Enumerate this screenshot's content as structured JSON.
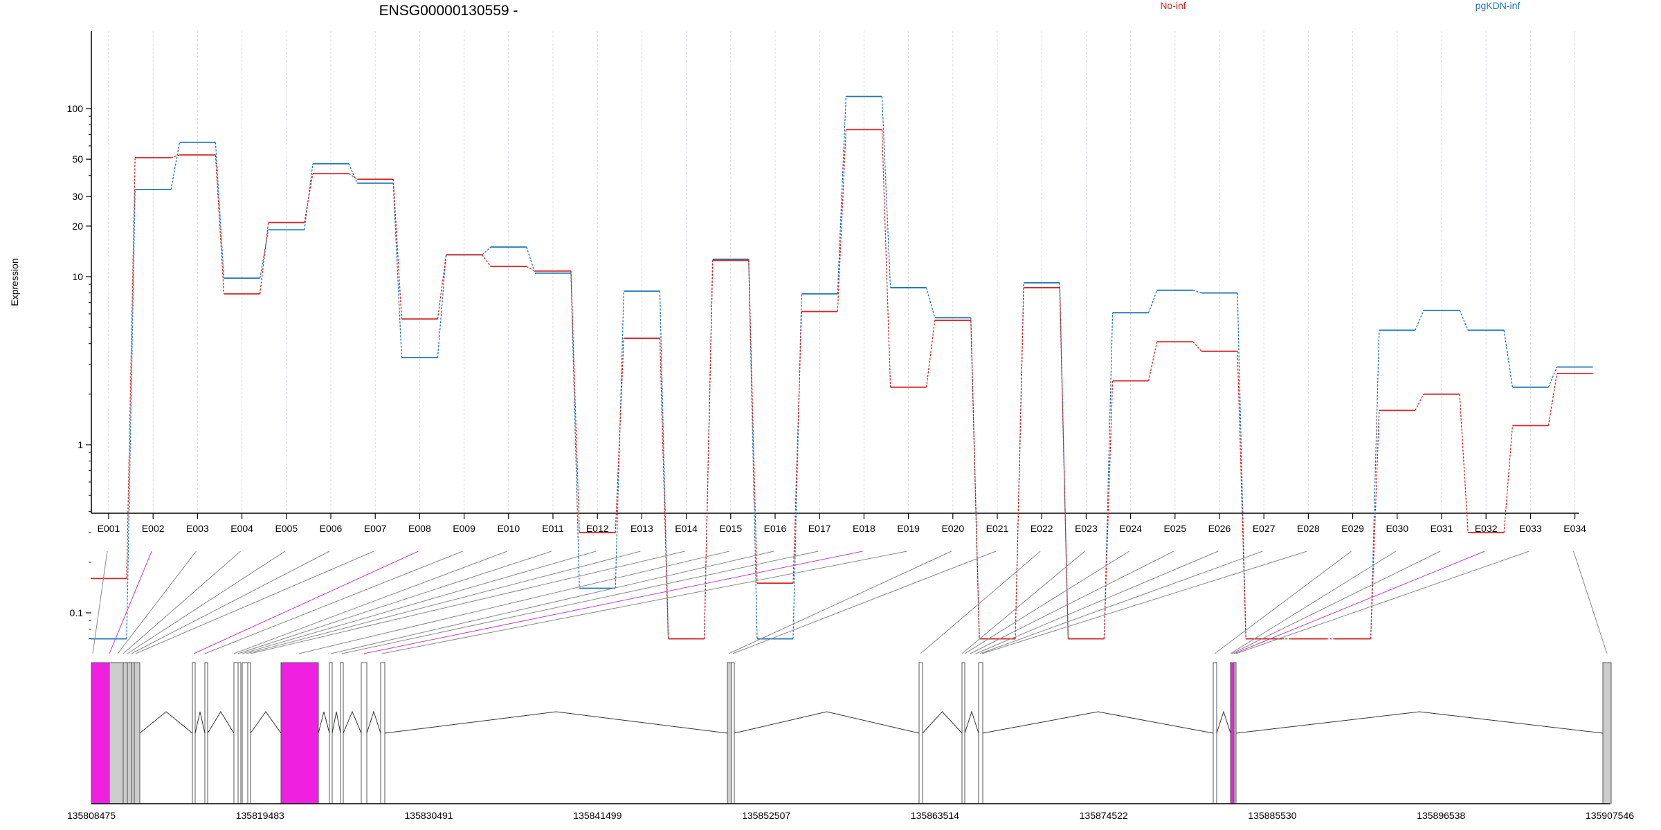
{
  "title": "ENSG00000130559 -",
  "ylabel": "Expression",
  "legend": [
    {
      "name": "No-inf",
      "color": "#d62728"
    },
    {
      "name": "pgKDN-inf",
      "color": "#1f77b4"
    }
  ],
  "colors": {
    "highlight": "#f020e0",
    "exon_fill": "#cccccc",
    "link_gray": "#888888",
    "link_magenta": "#c040c0",
    "grid": "#d9dbe6"
  },
  "chart_data": {
    "type": "line",
    "title": "ENSG00000130559 -",
    "xlabel": "",
    "ylabel": "Expression",
    "y_scale": "log",
    "ylim": [
      0.07,
      130
    ],
    "y_ticks": [
      0.1,
      1,
      10,
      20,
      30,
      50,
      100
    ],
    "y_tick_labels": [
      "0.1",
      "1",
      "10",
      "20",
      "30",
      "50",
      "100"
    ],
    "grid": "vertical lines at exon centers",
    "legend_position": "top",
    "categories": [
      "E001",
      "E002",
      "E003",
      "E004",
      "E005",
      "E006",
      "E007",
      "E008",
      "E009",
      "E010",
      "E011",
      "E012",
      "E013",
      "E014",
      "E015",
      "E016",
      "E017",
      "E018",
      "E019",
      "E020",
      "E021",
      "E022",
      "E023",
      "E024",
      "E025",
      "E026",
      "E027",
      "E028",
      "E029",
      "E030",
      "E031",
      "E032",
      "E033",
      "E034"
    ],
    "series": [
      {
        "name": "No-inf",
        "color": "#d62728",
        "values": [
          0.16,
          51,
          53,
          7.9,
          21,
          41,
          38,
          5.6,
          13.5,
          11.5,
          10.8,
          0.3,
          4.3,
          0.07,
          12.5,
          0.15,
          6.2,
          75,
          2.2,
          5.5,
          0.07,
          8.6,
          0.07,
          2.4,
          4.1,
          3.6,
          0.07,
          0.07,
          0.07,
          1.6,
          2.0,
          0.3,
          1.3,
          2.65
        ]
      },
      {
        "name": "pgKDN-inf",
        "color": "#1f77b4",
        "values": [
          0.07,
          33,
          63,
          9.8,
          19,
          47,
          36,
          3.3,
          13.5,
          15,
          10.5,
          0.14,
          8.2,
          0.07,
          12.7,
          0.07,
          7.9,
          118,
          8.6,
          5.7,
          0.07,
          9.2,
          0.07,
          6.1,
          8.3,
          8.0,
          0.07,
          0.07,
          0.07,
          4.8,
          6.3,
          4.8,
          2.2,
          2.9
        ]
      }
    ],
    "gene_model": {
      "coord_ticks": [
        "135808475",
        "135819483",
        "135830491",
        "135841499",
        "135852507",
        "135863514",
        "135874522",
        "135885530",
        "135896538",
        "135907546"
      ],
      "highlighted_exons": [
        "E002",
        "E008",
        "E018",
        "E032"
      ]
    }
  }
}
